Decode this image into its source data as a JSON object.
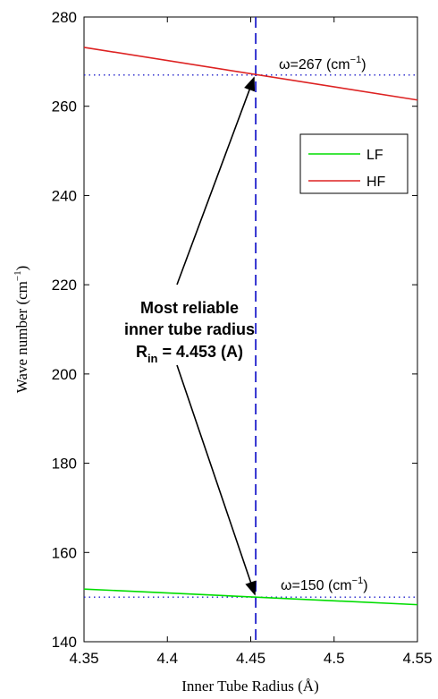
{
  "chart_data": {
    "type": "line",
    "xlabel": "Inner Tube Radius (Å)",
    "ylabel_main": "Wave number (cm",
    "ylabel_sup": "−1",
    "ylabel_close": ")",
    "xlim": [
      4.35,
      4.55
    ],
    "ylim": [
      140,
      280
    ],
    "x_ticks": [
      4.35,
      4.4,
      4.45,
      4.5,
      4.55
    ],
    "x_tick_labels": [
      "4.35",
      "4.4",
      "4.45",
      "4.5",
      "4.55"
    ],
    "y_ticks": [
      140,
      160,
      180,
      200,
      220,
      240,
      260,
      280
    ],
    "y_tick_labels": [
      "140",
      "160",
      "180",
      "200",
      "220",
      "240",
      "260",
      "280"
    ],
    "grid": false,
    "legend_position": "upper-right",
    "series": [
      {
        "name": "LF",
        "color": "#00dd00",
        "x": [
          4.35,
          4.55
        ],
        "y": [
          151.8,
          148.3
        ]
      },
      {
        "name": "HF",
        "color": "#dd2222",
        "x": [
          4.35,
          4.55
        ],
        "y": [
          273.2,
          261.4
        ]
      }
    ],
    "reference_lines": {
      "vertical_x": 4.453,
      "vertical_color": "#2222cc",
      "horizontal": [
        {
          "y": 267,
          "color": "#2222cc"
        },
        {
          "y": 150,
          "color": "#2222cc"
        }
      ]
    },
    "annotations": {
      "hf_label": {
        "omega": "ω=267 (cm",
        "sup": "−1",
        "close": ")"
      },
      "lf_label": {
        "omega": "ω=150 (cm",
        "sup": "−1",
        "close": ")"
      },
      "center_line1": "Most reliable",
      "center_line2": "inner tube radius",
      "center_line3_prefix": "R",
      "center_line3_sub": "in",
      "center_line3_suffix": " = 4.453 (A)"
    }
  }
}
